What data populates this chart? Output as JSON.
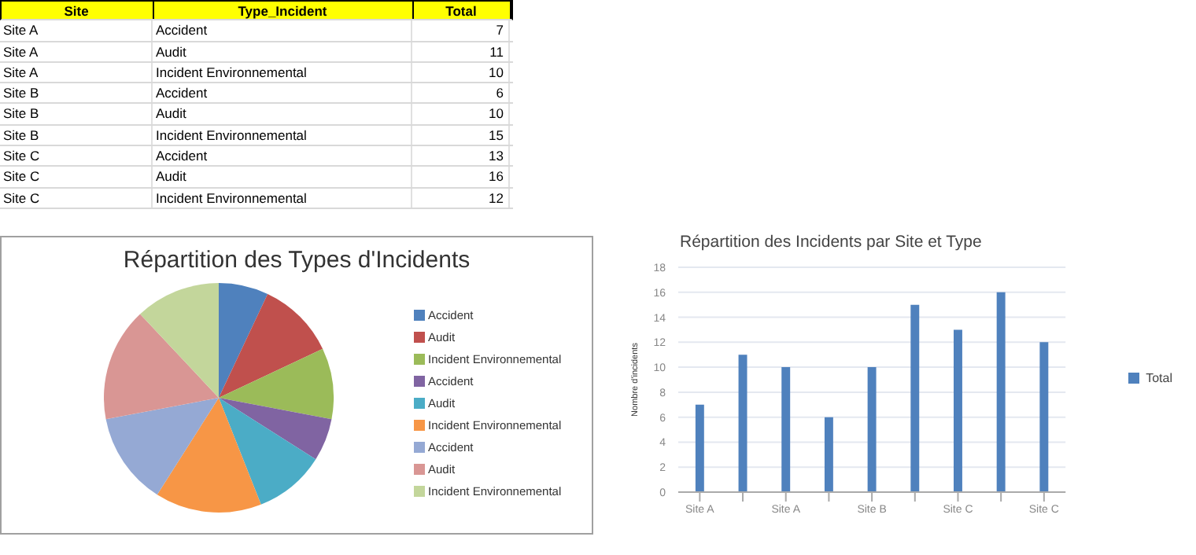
{
  "chart_data": [
    {
      "type": "other",
      "annotations": [
        "Site",
        "Type_Incident",
        "Total",
        "Site A",
        "Accident",
        "7",
        "Site A",
        "Audit",
        "11",
        "Site A",
        "Incident Environnemental",
        "10",
        "Site B",
        "Accident",
        "6",
        "Site B",
        "Audit",
        "10",
        "Site B",
        "Incident Environnemental",
        "15",
        "Site C",
        "Accident",
        "13",
        "Site C",
        "Audit",
        "16",
        "Site C",
        "Incident Environnemental",
        "12"
      ]
    },
    {
      "type": "pie",
      "title": "Répartition des Types d'Incidents",
      "categories": [
        "Accident",
        "Audit",
        "Incident Environnemental",
        "Accident",
        "Audit",
        "Incident Environnemental",
        "Accident",
        "Audit",
        "Incident Environnemental"
      ],
      "values": [
        7,
        11,
        10,
        6,
        10,
        15,
        13,
        16,
        12
      ],
      "colors": [
        "#4f81bd",
        "#c0504d",
        "#9bbb59",
        "#8064a2",
        "#4bacc6",
        "#f79646",
        "#95a9d4",
        "#d99694",
        "#c3d69b"
      ],
      "legend": "right"
    },
    {
      "type": "bar",
      "title": "Répartition des Incidents par Site et Type",
      "ylabel": "Nombre d'incidents",
      "categories": [
        "Site A",
        null,
        "Site A",
        null,
        "Site B",
        null,
        "Site C",
        null,
        "Site C"
      ],
      "series": [
        {
          "name": "Total",
          "color": "#4f81bd",
          "values": [
            7,
            11,
            10,
            6,
            10,
            15,
            13,
            16,
            12
          ]
        }
      ],
      "ylim": [
        0,
        18
      ],
      "yticks": [
        0,
        2,
        4,
        6,
        8,
        10,
        12,
        14,
        16,
        18
      ],
      "grid": "y",
      "legend": "right"
    }
  ]
}
